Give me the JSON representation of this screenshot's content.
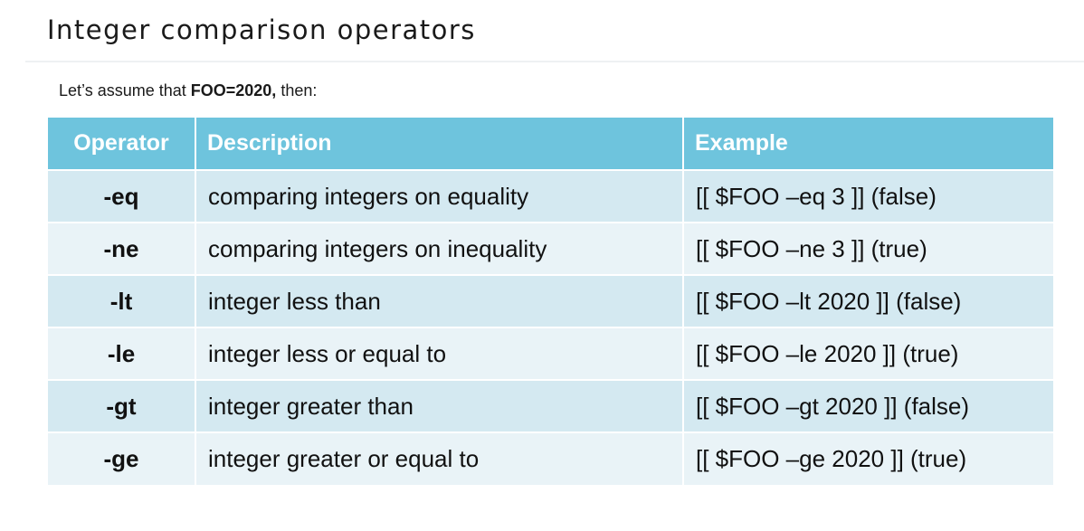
{
  "page": {
    "title": "Integer comparison operators",
    "intro_before": "Let’s assume that ",
    "intro_strong": "FOO=2020,",
    "intro_after": " then:"
  },
  "table": {
    "headers": {
      "operator": "Operator",
      "description": "Description",
      "example": "Example"
    },
    "rows": [
      {
        "operator": "-eq",
        "description": "comparing integers on equality",
        "example": "[[ $FOO –eq 3 ]] (false)"
      },
      {
        "operator": "-ne",
        "description": "comparing integers on inequality",
        "example": "[[ $FOO –ne 3 ]] (true)"
      },
      {
        "operator": "-lt",
        "description": "integer less than",
        "example": "[[ $FOO –lt 2020 ]] (false)"
      },
      {
        "operator": "-le",
        "description": "integer less or equal to",
        "example": "[[ $FOO –le 2020 ]] (true)"
      },
      {
        "operator": "-gt",
        "description": "integer greater than",
        "example": "[[ $FOO –gt 2020 ]] (false)"
      },
      {
        "operator": "-ge",
        "description": "integer greater or equal to",
        "example": "[[ $FOO –ge 2020 ]] (true)"
      }
    ]
  },
  "colors": {
    "header_bg": "#6ec4dd",
    "row_odd_bg": "#d4e9f1",
    "row_even_bg": "#e9f3f7"
  }
}
